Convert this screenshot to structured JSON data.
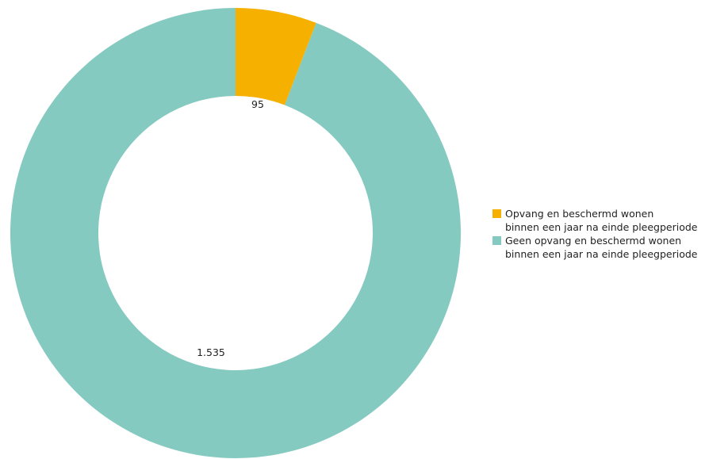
{
  "chart_data": {
    "type": "pie",
    "donut": true,
    "categories": [
      "Opvang en beschermd wonen binnen een jaar na einde pleegperiode",
      "Geen opvang en beschermd wonen binnen een jaar na einde pleegperiode"
    ],
    "values": [
      95,
      1535
    ],
    "value_labels": [
      "95",
      "1.535"
    ],
    "colors": [
      "#f5b000",
      "#85cac0"
    ],
    "legend_position": "right"
  },
  "legend": {
    "items": [
      {
        "line1": "Opvang en beschermd wonen",
        "line2": "binnen een jaar na einde pleegperiode",
        "color": "#f5b000"
      },
      {
        "line1": "Geen opvang en beschermd wonen",
        "line2": "binnen een jaar na einde pleegperiode",
        "color": "#85cac0"
      }
    ]
  }
}
